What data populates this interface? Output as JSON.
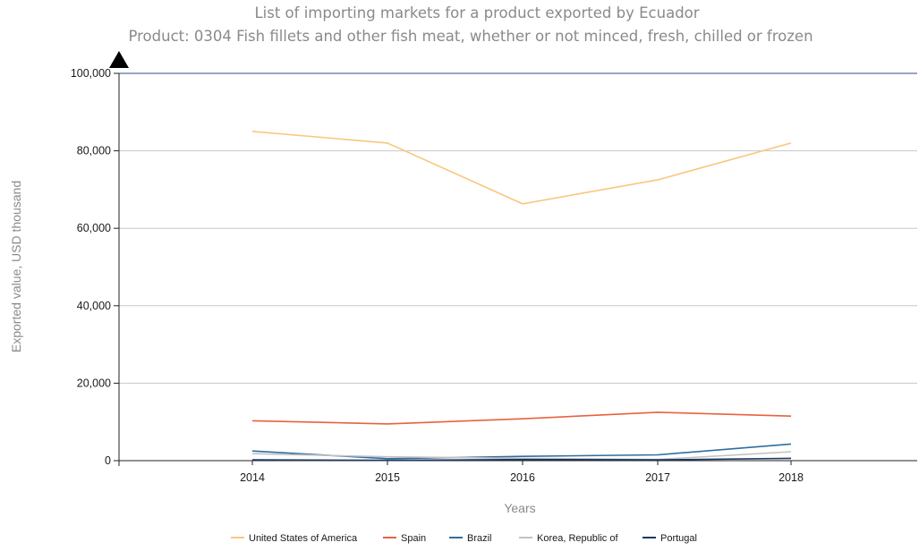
{
  "chart_data": {
    "type": "line",
    "title": "List of importing markets for a product exported by Ecuador",
    "subtitle": "Product: 0304 Fish fillets and other fish meat, whether or not minced, fresh, chilled or frozen",
    "xlabel": "Years",
    "ylabel": "Exported value, USD thousand",
    "x": [
      "2014",
      "2015",
      "2016",
      "2017",
      "2018"
    ],
    "ylim": [
      0,
      100000
    ],
    "yticks": [
      "0",
      "20,000",
      "40,000",
      "60,000",
      "80,000",
      "100,000"
    ],
    "grid": true,
    "legend_position": "bottom",
    "series": [
      {
        "name": "United States of America",
        "color": "#f9c77e",
        "values": [
          85000,
          82000,
          66300,
          72500,
          82000
        ]
      },
      {
        "name": "Spain",
        "color": "#e8623f",
        "values": [
          10300,
          9500,
          10800,
          12500,
          11500
        ]
      },
      {
        "name": "Brazil",
        "color": "#2f6e9e",
        "values": [
          2500,
          500,
          1100,
          1500,
          4300
        ]
      },
      {
        "name": "Korea, Republic of",
        "color": "#c2c2c2",
        "values": [
          1800,
          1000,
          600,
          300,
          2300
        ]
      },
      {
        "name": "Portugal",
        "color": "#1f3864",
        "values": [
          200,
          100,
          300,
          200,
          600
        ]
      }
    ]
  }
}
